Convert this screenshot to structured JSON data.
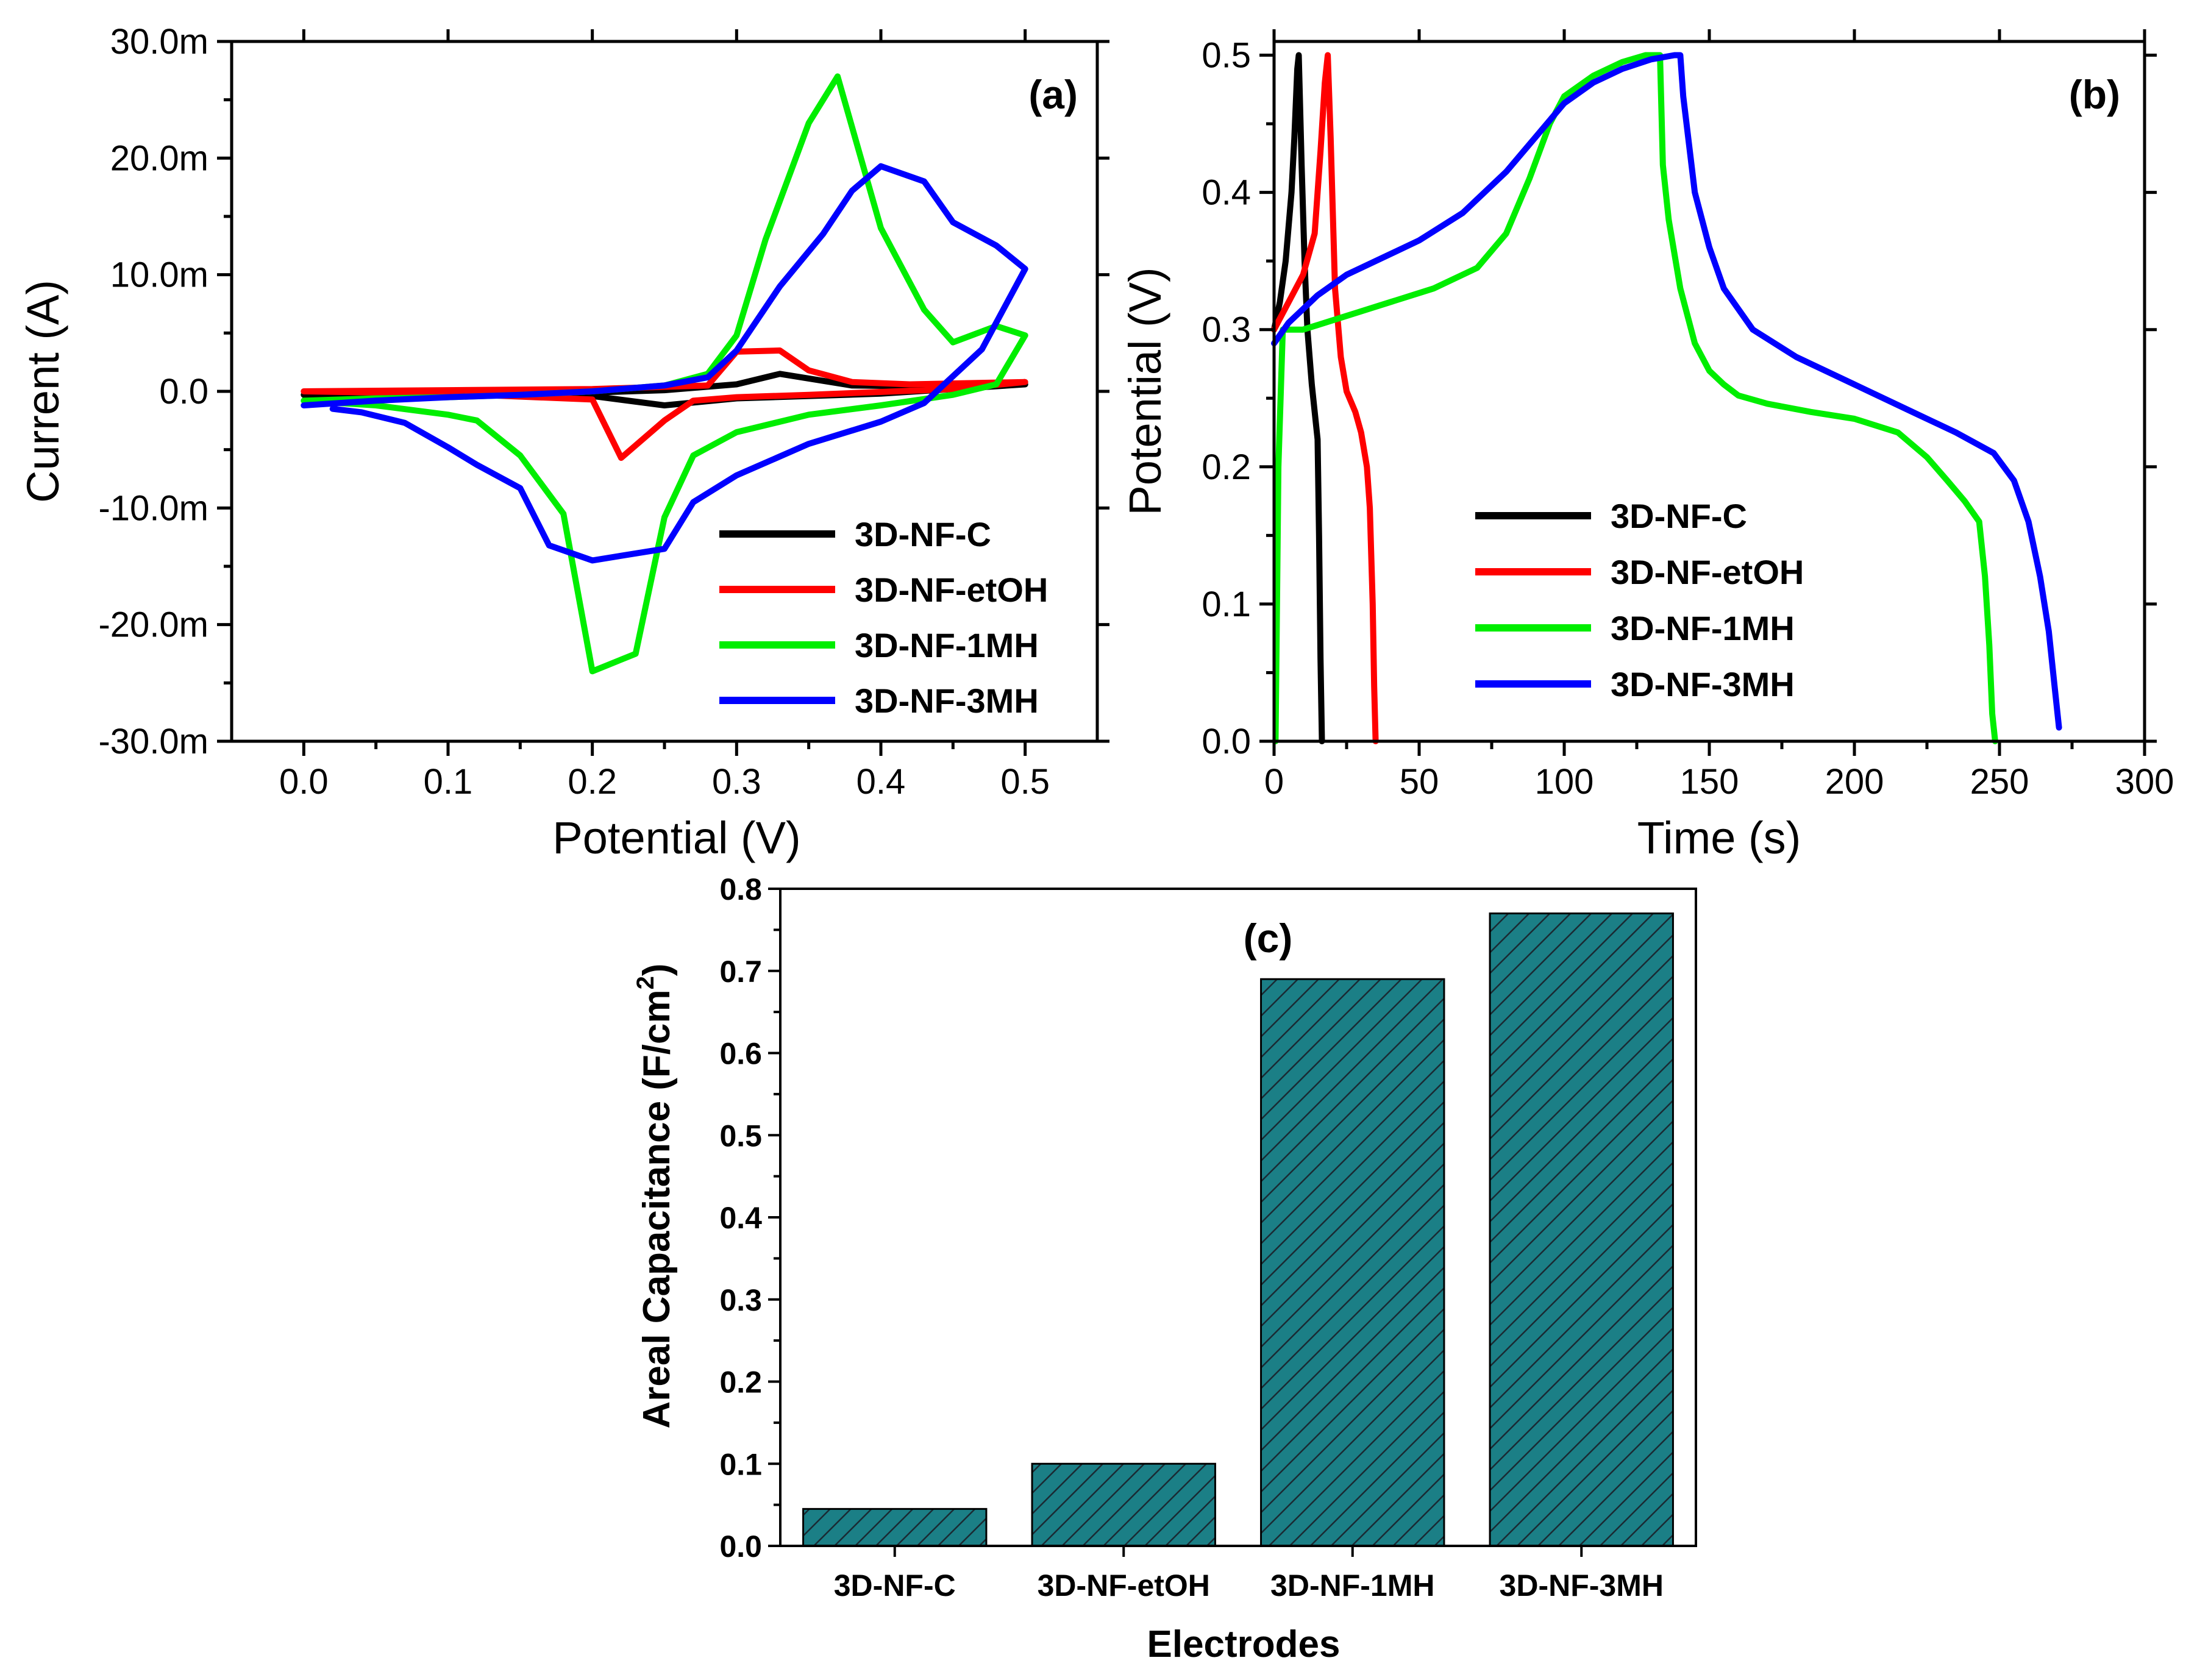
{
  "colors": {
    "3D-NF-C": "#000000",
    "3D-NF-etOH": "#ff0000",
    "3D-NF-1MH": "#00ee00",
    "3D-NF-3MH": "#0000ff",
    "bar_fill": "#1b7f86",
    "hatch": "#1a2a33"
  },
  "chart_data": [
    {
      "panel": "(a)",
      "type": "line",
      "title": "",
      "xlabel": "Potential (V)",
      "ylabel": "Current (A)",
      "xlim": [
        -0.05,
        0.55
      ],
      "ylim": [
        -0.03,
        0.03
      ],
      "xticks": [
        0.0,
        0.1,
        0.2,
        0.3,
        0.4,
        0.5
      ],
      "xtick_labels": [
        "0.0",
        "0.1",
        "0.2",
        "0.3",
        "0.4",
        "0.5"
      ],
      "yticks": [
        -0.03,
        -0.02,
        -0.01,
        0.0,
        0.01,
        0.02,
        0.03
      ],
      "ytick_labels": [
        "-30.0m",
        "-20.0m",
        "-10.0m",
        "0.0",
        "10.0m",
        "20.0m",
        "30.0m"
      ],
      "legend_position": "bottom-right",
      "series": [
        {
          "name": "3D-NF-C",
          "x": [
            0.0,
            0.1,
            0.2,
            0.25,
            0.3,
            0.33,
            0.38,
            0.45,
            0.5,
            0.45,
            0.4,
            0.3,
            0.25,
            0.2,
            0.1,
            0.0
          ],
          "y": [
            -0.0003,
            -0.0002,
            -0.0001,
            0.0001,
            0.0006,
            0.0015,
            0.0005,
            0.0004,
            0.0006,
            0.0002,
            -0.0002,
            -0.0006,
            -0.0012,
            -0.0004,
            -0.0003,
            -0.0003
          ]
        },
        {
          "name": "3D-NF-etOH",
          "x": [
            0.0,
            0.1,
            0.2,
            0.28,
            0.3,
            0.33,
            0.35,
            0.38,
            0.42,
            0.5,
            0.45,
            0.35,
            0.3,
            0.27,
            0.25,
            0.22,
            0.2,
            0.1,
            0.0
          ],
          "y": [
            0.0,
            0.0001,
            0.0002,
            0.0005,
            0.0034,
            0.0035,
            0.0018,
            0.0008,
            0.0006,
            0.0008,
            0.0002,
            -0.0003,
            -0.0005,
            -0.0008,
            -0.0025,
            -0.0057,
            -0.0007,
            -0.0002,
            0.0
          ]
        },
        {
          "name": "3D-NF-1MH",
          "x": [
            0.0,
            0.05,
            0.1,
            0.15,
            0.2,
            0.25,
            0.28,
            0.3,
            0.32,
            0.35,
            0.37,
            0.4,
            0.43,
            0.45,
            0.48,
            0.5,
            0.48,
            0.45,
            0.4,
            0.35,
            0.3,
            0.27,
            0.25,
            0.23,
            0.2,
            0.18,
            0.15,
            0.12,
            0.1,
            0.05,
            0.0
          ],
          "y": [
            -0.0008,
            -0.0006,
            -0.0005,
            -0.0003,
            0.0,
            0.0005,
            0.0015,
            0.0048,
            0.013,
            0.023,
            0.027,
            0.014,
            0.007,
            0.0042,
            0.0056,
            0.0048,
            0.0006,
            -0.0003,
            -0.0012,
            -0.002,
            -0.0035,
            -0.0055,
            -0.0108,
            -0.0225,
            -0.024,
            -0.0105,
            -0.0055,
            -0.0025,
            -0.002,
            -0.0012,
            -0.0008
          ]
        },
        {
          "name": "3D-NF-3MH",
          "x": [
            0.0,
            0.05,
            0.1,
            0.15,
            0.2,
            0.25,
            0.28,
            0.3,
            0.33,
            0.36,
            0.38,
            0.4,
            0.43,
            0.45,
            0.48,
            0.5,
            0.47,
            0.43,
            0.4,
            0.35,
            0.3,
            0.27,
            0.25,
            0.2,
            0.17,
            0.15,
            0.12,
            0.1,
            0.07,
            0.04,
            0.02
          ],
          "y": [
            -0.0012,
            -0.0008,
            -0.0005,
            -0.0003,
            0.0,
            0.0005,
            0.0012,
            0.0035,
            0.009,
            0.0135,
            0.0172,
            0.0193,
            0.018,
            0.0145,
            0.0125,
            0.0105,
            0.0036,
            -0.001,
            -0.0026,
            -0.0045,
            -0.0072,
            -0.0095,
            -0.0135,
            -0.0145,
            -0.0132,
            -0.0083,
            -0.0063,
            -0.0048,
            -0.0027,
            -0.0018,
            -0.0015
          ]
        }
      ]
    },
    {
      "panel": "(b)",
      "type": "line",
      "title": "",
      "xlabel": "Time (s)",
      "ylabel": "Potential (V)",
      "xlim": [
        0,
        300
      ],
      "ylim": [
        0,
        0.51
      ],
      "xticks": [
        0,
        50,
        100,
        150,
        200,
        250,
        300
      ],
      "xtick_labels": [
        "0",
        "50",
        "100",
        "150",
        "200",
        "250",
        "300"
      ],
      "yticks": [
        0.0,
        0.1,
        0.2,
        0.3,
        0.4,
        0.5
      ],
      "ytick_labels": [
        "0.0",
        "0.1",
        "0.2",
        "0.3",
        "0.4",
        "0.5"
      ],
      "legend_position": "bottom-left",
      "series": [
        {
          "name": "3D-NF-C",
          "x": [
            0,
            2,
            4,
            6,
            7,
            8,
            8.5,
            9.5,
            10.5,
            11.5,
            13,
            15,
            15.5,
            16,
            16.5
          ],
          "y": [
            0.3,
            0.32,
            0.35,
            0.4,
            0.44,
            0.49,
            0.5,
            0.42,
            0.35,
            0.3,
            0.26,
            0.22,
            0.15,
            0.06,
            0.0
          ]
        },
        {
          "name": "3D-NF-etOH",
          "x": [
            0,
            5,
            10,
            14,
            16,
            17.5,
            18.5,
            19.5,
            21,
            23,
            25,
            28,
            30,
            32,
            33,
            34,
            34.5,
            35
          ],
          "y": [
            0.3,
            0.32,
            0.34,
            0.37,
            0.43,
            0.48,
            0.5,
            0.44,
            0.33,
            0.28,
            0.255,
            0.24,
            0.225,
            0.2,
            0.17,
            0.1,
            0.04,
            0.0
          ]
        },
        {
          "name": "3D-NF-1MH",
          "x": [
            0.5,
            1,
            1.5,
            3,
            10,
            25,
            40,
            55,
            70,
            80,
            88,
            95,
            100,
            110,
            120,
            128,
            133,
            134,
            136,
            140,
            145,
            150,
            155,
            160,
            170,
            185,
            200,
            215,
            225,
            232,
            238,
            243,
            245,
            246.5,
            247.5,
            248.5
          ],
          "y": [
            0.0,
            0.1,
            0.2,
            0.3,
            0.3,
            0.31,
            0.32,
            0.33,
            0.345,
            0.37,
            0.41,
            0.45,
            0.47,
            0.485,
            0.495,
            0.5,
            0.5,
            0.42,
            0.38,
            0.33,
            0.29,
            0.27,
            0.26,
            0.252,
            0.246,
            0.24,
            0.235,
            0.225,
            0.207,
            0.19,
            0.175,
            0.16,
            0.12,
            0.07,
            0.02,
            0.0
          ]
        },
        {
          "name": "3D-NF-3MH",
          "x": [
            0,
            5,
            15,
            25,
            35,
            50,
            65,
            80,
            90,
            100,
            110,
            120,
            130,
            138,
            140,
            141,
            145,
            150,
            155,
            165,
            180,
            200,
            220,
            235,
            248,
            255,
            260,
            264,
            267,
            269,
            270,
            270.5
          ],
          "y": [
            0.29,
            0.305,
            0.325,
            0.34,
            0.35,
            0.365,
            0.385,
            0.415,
            0.44,
            0.465,
            0.48,
            0.49,
            0.497,
            0.5,
            0.5,
            0.47,
            0.4,
            0.36,
            0.33,
            0.3,
            0.28,
            0.26,
            0.24,
            0.225,
            0.21,
            0.19,
            0.16,
            0.12,
            0.08,
            0.04,
            0.02,
            0.01
          ]
        }
      ]
    },
    {
      "panel": "(c)",
      "type": "bar",
      "title": "",
      "xlabel": "Electrodes",
      "ylabel": "Areal Capacitance (F/cm",
      "ylabel_superscript": "2",
      "ylabel_end": ")",
      "ylim": [
        0,
        0.8
      ],
      "yticks": [
        0.0,
        0.1,
        0.2,
        0.3,
        0.4,
        0.5,
        0.6,
        0.7,
        0.8
      ],
      "ytick_labels": [
        "0.0",
        "0.1",
        "0.2",
        "0.3",
        "0.4",
        "0.5",
        "0.6",
        "0.7",
        "0.8"
      ],
      "categories": [
        "3D-NF-C",
        "3D-NF-etOH",
        "3D-NF-1MH",
        "3D-NF-3MH"
      ],
      "values": [
        0.045,
        0.1,
        0.69,
        0.77
      ]
    }
  ]
}
